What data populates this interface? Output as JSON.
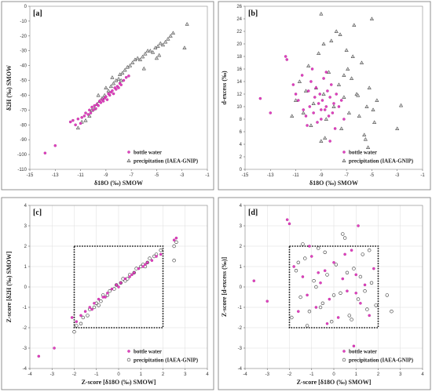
{
  "colors": {
    "bottle": "#e040c0",
    "precip_stroke": "#333333",
    "box": "#111111"
  },
  "chart_data": [
    {
      "type": "scatter",
      "panel": "[a]",
      "xlabel": "δ18O (‰) SMOW",
      "ylabel": "δ2H (‰) SMOW",
      "xlim": [
        -15,
        -1
      ],
      "ylim": [
        -110,
        0
      ],
      "xticks": [
        -15,
        -13,
        -11,
        -9,
        -7,
        -5,
        -3,
        -1
      ],
      "yticks": [
        -110,
        -100,
        -90,
        -80,
        -70,
        -60,
        -50,
        -40,
        -30,
        -20,
        -10,
        0
      ],
      "grid": false,
      "legend_position": "bottom-right",
      "series": [
        {
          "name": "bottle water",
          "marker": "dot",
          "x": [
            -13.8,
            -13.0,
            -11.8,
            -11.6,
            -11.4,
            -11.2,
            -11.0,
            -10.9,
            -10.7,
            -10.6,
            -10.4,
            -10.3,
            -10.2,
            -10.1,
            -10.0,
            -9.9,
            -9.8,
            -9.7,
            -9.6,
            -9.5,
            -9.4,
            -9.3,
            -9.2,
            -9.1,
            -9.0,
            -8.9,
            -8.8,
            -8.7,
            -8.6,
            -8.5,
            -8.4,
            -8.3,
            -8.2,
            -8.1,
            -8.0,
            -7.9,
            -7.8,
            -7.6,
            -7.4,
            -7.2
          ],
          "y": [
            -99,
            -94,
            -78,
            -77,
            -80,
            -76,
            -79,
            -75,
            -74,
            -72,
            -73,
            -70,
            -72,
            -68,
            -70,
            -67,
            -69,
            -66,
            -67,
            -64,
            -65,
            -63,
            -64,
            -62,
            -61,
            -63,
            -59,
            -60,
            -58,
            -57,
            -59,
            -55,
            -56,
            -54,
            -55,
            -52,
            -53,
            -50,
            -48,
            -47
          ]
        },
        {
          "name": "precipitation (IAEA-GNIP)",
          "marker": "triangle",
          "x": [
            -11.2,
            -10.9,
            -10.6,
            -10.3,
            -10.1,
            -9.9,
            -9.7,
            -9.5,
            -9.3,
            -9.1,
            -9.0,
            -8.8,
            -8.6,
            -8.4,
            -8.2,
            -8.0,
            -7.9,
            -7.7,
            -7.5,
            -7.3,
            -7.1,
            -6.9,
            -6.7,
            -6.5,
            -6.3,
            -6.1,
            -5.9,
            -5.7,
            -5.5,
            -5.3,
            -5.1,
            -4.9,
            -4.7,
            -4.5,
            -4.3,
            -4.1,
            -3.9,
            -3.7,
            -5.0,
            -4.8,
            -6.0,
            -8.5,
            -7.8,
            -9.6,
            -2.8,
            -2.6
          ],
          "y": [
            -82,
            -78,
            -77,
            -74,
            -70,
            -69,
            -66,
            -64,
            -62,
            -60,
            -55,
            -57,
            -54,
            -52,
            -50,
            -49,
            -46,
            -45,
            -43,
            -41,
            -40,
            -38,
            -36,
            -35,
            -36,
            -34,
            -32,
            -30,
            -30,
            -31,
            -28,
            -27,
            -25,
            -26,
            -24,
            -22,
            -20,
            -18,
            -35,
            -33,
            -42,
            -48,
            -50,
            -60,
            -28,
            -12
          ]
        }
      ]
    },
    {
      "type": "scatter",
      "panel": "[b]",
      "xlabel": "δ18O (‰) SMOW",
      "ylabel": "d-excess (‰)",
      "xlim": [
        -15,
        -1
      ],
      "ylim": [
        0,
        26
      ],
      "xticks": [
        -15,
        -13,
        -11,
        -9,
        -7,
        -5,
        -3,
        -1
      ],
      "yticks": [
        0,
        2,
        4,
        6,
        8,
        10,
        12,
        14,
        16,
        18,
        20,
        22,
        24,
        26
      ],
      "grid": false,
      "legend_position": "bottom-right",
      "series": [
        {
          "name": "bottle water",
          "marker": "dot",
          "x": [
            -13.8,
            -13.0,
            -11.8,
            -11.7,
            -11.2,
            -11.0,
            -10.8,
            -10.5,
            -10.4,
            -10.2,
            -10.0,
            -9.9,
            -9.8,
            -9.6,
            -9.5,
            -9.4,
            -9.3,
            -9.2,
            -9.1,
            -9.0,
            -8.9,
            -8.8,
            -8.7,
            -8.6,
            -8.5,
            -8.4,
            -8.3,
            -8.2,
            -8.1,
            -8.0,
            -7.9,
            -7.8,
            -7.6,
            -7.4,
            -7.2,
            -9.7,
            -8.6,
            -10.1,
            -9.0,
            -8.3
          ],
          "y": [
            11.3,
            9.0,
            18.0,
            17.5,
            13.5,
            12.0,
            11.0,
            15.0,
            9.5,
            8.5,
            12.5,
            10.0,
            14.0,
            9.0,
            11.5,
            13.0,
            7.5,
            10.5,
            12.0,
            8.0,
            11.0,
            14.5,
            9.5,
            10.0,
            12.5,
            8.5,
            11.5,
            13.5,
            9.0,
            10.5,
            6.5,
            12.0,
            10.0,
            11.0,
            8.0,
            16.0,
            15.5,
            7.0,
            9.5,
            4.5
          ]
        },
        {
          "name": "precipitation (IAEA-GNIP)",
          "marker": "triangle",
          "x": [
            -11.3,
            -11.0,
            -10.7,
            -10.4,
            -10.2,
            -10.0,
            -9.8,
            -9.6,
            -9.4,
            -9.2,
            -9.0,
            -8.8,
            -8.6,
            -8.4,
            -8.2,
            -8.0,
            -7.8,
            -7.6,
            -7.4,
            -7.2,
            -7.0,
            -6.8,
            -6.6,
            -6.4,
            -6.2,
            -6.0,
            -5.8,
            -5.6,
            -5.4,
            -5.2,
            -5.0,
            -4.8,
            -4.6,
            -9.0,
            -8.7,
            -7.5,
            -6.9,
            -6.5,
            -5.5,
            -5.3,
            -4.9,
            -3.0,
            -2.7,
            -8.8,
            -7.2,
            -6.1
          ],
          "y": [
            8.5,
            11.0,
            14.0,
            9.0,
            12.5,
            16.5,
            7.0,
            10.5,
            13.0,
            18.5,
            24.8,
            12.0,
            8.0,
            15.5,
            20.5,
            10.0,
            22.0,
            13.5,
            6.5,
            11.5,
            19.0,
            9.0,
            14.5,
            23.0,
            12.0,
            8.5,
            17.0,
            5.5,
            10.0,
            13.0,
            24.0,
            7.5,
            11.0,
            4.5,
            5.0,
            21.5,
            16.0,
            18.0,
            4.8,
            3.5,
            9.5,
            6.5,
            10.2,
            20.0,
            15.0,
            11.8
          ]
        }
      ]
    },
    {
      "type": "scatter",
      "panel": "[c]",
      "xlabel": "Z-score [δ18O (‰) SMOW]",
      "ylabel": "Z-score [δ2H (‰) SMOW]",
      "xlim": [
        -4,
        4
      ],
      "ylim": [
        -4,
        4
      ],
      "xticks": [
        -4,
        -3,
        -2,
        -1,
        0,
        1,
        2,
        3,
        4
      ],
      "yticks": [
        -4,
        -3,
        -2,
        -1,
        0,
        1,
        2,
        3,
        4
      ],
      "grid": true,
      "legend_position": "bottom-right",
      "dotted_box": [
        -2,
        2,
        -2,
        2
      ],
      "series": [
        {
          "name": "bottle water",
          "marker": "dot",
          "x": [
            -3.6,
            -2.9,
            -2.1,
            -1.9,
            -1.7,
            -1.5,
            -1.3,
            -1.1,
            -0.9,
            -0.7,
            -0.5,
            -0.3,
            -0.1,
            0.1,
            0.3,
            0.5,
            0.7,
            0.9,
            1.1,
            1.3,
            1.5,
            1.7,
            1.9,
            2.5,
            2.6,
            -1.2,
            -0.6,
            0.0,
            0.6,
            1.2
          ],
          "y": [
            -3.4,
            -3.0,
            -1.5,
            -1.7,
            -1.4,
            -1.2,
            -1.0,
            -0.8,
            -0.6,
            -0.5,
            -0.3,
            -0.1,
            0.1,
            0.2,
            0.4,
            0.5,
            0.7,
            0.9,
            1.0,
            1.2,
            1.3,
            1.5,
            1.6,
            2.3,
            2.4,
            -1.1,
            -0.5,
            0.0,
            0.6,
            1.1
          ]
        },
        {
          "name": "precipitation (IAEA-GNIP)",
          "marker": "circle",
          "x": [
            -2.0,
            -1.9,
            -1.7,
            -1.6,
            -1.4,
            -1.3,
            -1.1,
            -1.0,
            -0.8,
            -0.7,
            -0.5,
            -0.4,
            -0.2,
            -0.1,
            0.1,
            0.2,
            0.4,
            0.5,
            0.7,
            0.8,
            1.0,
            1.1,
            1.3,
            1.4,
            1.6,
            1.7,
            1.9,
            2.5,
            2.5,
            2.6,
            -0.9,
            0.3,
            1.2
          ],
          "y": [
            -2.2,
            -1.9,
            -1.8,
            -1.5,
            -1.4,
            -1.1,
            -1.0,
            -0.8,
            -0.7,
            -0.4,
            -0.4,
            -0.2,
            -0.1,
            0.1,
            0.2,
            0.4,
            0.4,
            0.6,
            0.7,
            0.9,
            1.0,
            1.1,
            1.2,
            1.4,
            1.5,
            1.6,
            1.8,
            1.3,
            2.0,
            2.2,
            -0.9,
            0.3,
            1.0
          ]
        }
      ]
    },
    {
      "type": "scatter",
      "panel": "[d]",
      "xlabel": "Z-score [δ18O (‰) SMOW]",
      "ylabel": "Z-score [d-excess (‰)]",
      "xlim": [
        -4,
        4
      ],
      "ylim": [
        -4,
        4
      ],
      "xticks": [
        -4,
        -3,
        -2,
        -1,
        0,
        1,
        2,
        3,
        4
      ],
      "yticks": [
        -4,
        -3,
        -2,
        -1,
        0,
        1,
        2,
        3,
        4
      ],
      "grid": true,
      "legend_position": "bottom-right",
      "dotted_box": [
        -2,
        2,
        -2,
        2
      ],
      "series": [
        {
          "name": "bottle water",
          "marker": "dot",
          "x": [
            -3.6,
            -3.0,
            -2.1,
            -2.0,
            -1.8,
            -1.6,
            -1.4,
            -1.2,
            -1.0,
            -0.8,
            -0.6,
            -0.4,
            -0.2,
            0.0,
            0.2,
            0.4,
            0.6,
            0.8,
            1.0,
            1.2,
            1.4,
            1.6,
            1.8,
            -1.1,
            -0.3,
            0.5,
            1.1,
            0.9,
            1.0,
            -0.7
          ],
          "y": [
            0.3,
            -0.7,
            3.3,
            3.1,
            1.0,
            -1.2,
            0.5,
            -0.4,
            1.5,
            -1.0,
            0.2,
            0.8,
            -0.6,
            1.2,
            -1.5,
            0.4,
            -0.2,
            1.8,
            0.6,
            -0.8,
            0.1,
            -1.4,
            0.9,
            2.0,
            -1.8,
            1.6,
            3.0,
            -2.9,
            -0.3,
            0.7
          ]
        },
        {
          "name": "precipitation (IAEA-GNIP)",
          "marker": "circle",
          "x": [
            -1.9,
            -1.7,
            -1.5,
            -1.3,
            -1.1,
            -0.9,
            -0.7,
            -0.5,
            -0.3,
            -0.1,
            0.1,
            0.3,
            0.5,
            0.7,
            0.9,
            1.1,
            1.3,
            1.5,
            1.7,
            1.9,
            -1.6,
            -1.2,
            -0.8,
            -0.4,
            0.0,
            0.4,
            0.8,
            1.2,
            1.6,
            2.4,
            2.6,
            -0.6,
            0.6,
            1.4,
            -1.4
          ],
          "y": [
            -1.5,
            0.8,
            -0.5,
            1.4,
            -1.2,
            0.3,
            1.9,
            -0.8,
            0.6,
            -1.7,
            1.1,
            -0.3,
            2.4,
            -1.4,
            0.9,
            -0.6,
            1.6,
            -1.1,
            0.2,
            -0.9,
            1.2,
            -1.9,
            0.0,
            1.7,
            -0.4,
            2.6,
            -1.6,
            0.5,
            1.8,
            -0.4,
            -1.2,
            -1.0,
            0.7,
            -0.2,
            2.1
          ]
        }
      ]
    }
  ]
}
